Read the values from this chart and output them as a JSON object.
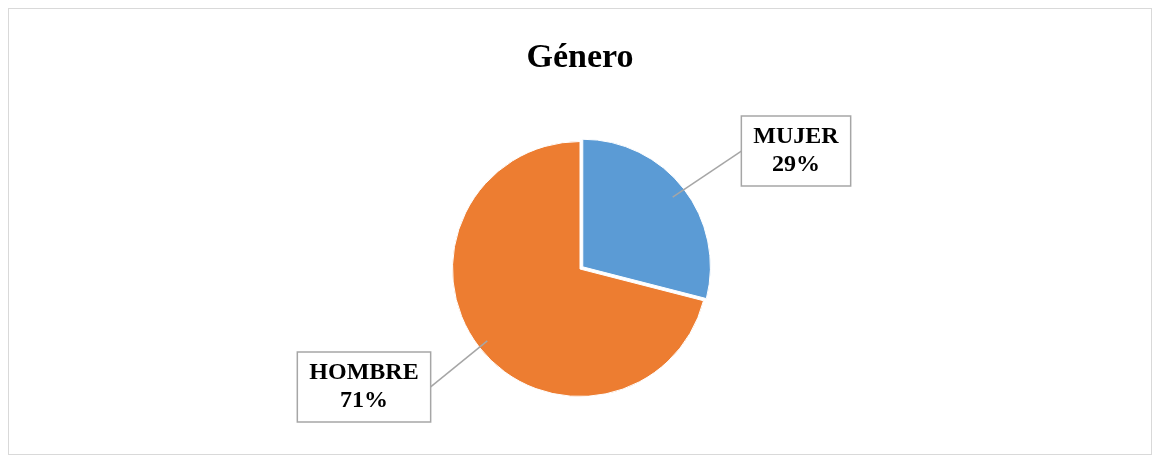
{
  "chart_data": {
    "type": "pie",
    "title": "Género",
    "categories": [
      "MUJER",
      "HOMBRE"
    ],
    "values": [
      29,
      71
    ],
    "colors": [
      "#5b9bd5",
      "#ed7d31"
    ],
    "value_labels": [
      "29%",
      "71%"
    ],
    "legend": false
  }
}
